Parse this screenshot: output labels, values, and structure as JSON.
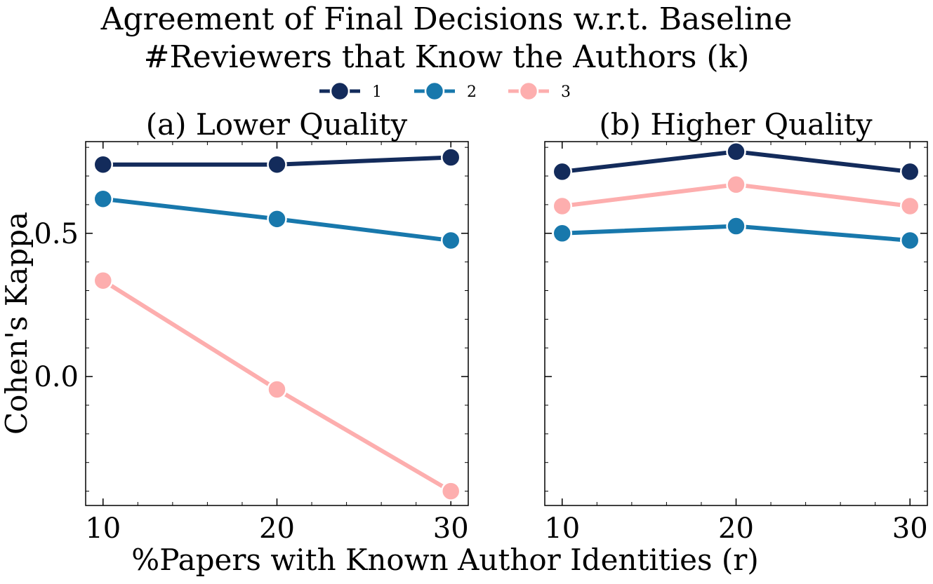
{
  "figure": {
    "title_line1": "Agreement of Final Decisions w.r.t. Baseline",
    "title_line2": "#Reviewers that Know the Authors (k)"
  },
  "legend": {
    "entries": [
      {
        "label": "1",
        "color": "#132b5b"
      },
      {
        "label": "2",
        "color": "#1878ac"
      },
      {
        "label": "3",
        "color": "#fdaeae"
      }
    ]
  },
  "chart_data": [
    {
      "type": "line",
      "title": "(a) Lower Quality",
      "xlabel": "%Papers with Known Author Identities (r)",
      "ylabel": "Cohen's Kappa",
      "x": [
        10,
        20,
        30
      ],
      "xticks": [
        "10",
        "20",
        "30"
      ],
      "yticks": [
        "0.5",
        "0.0"
      ],
      "ytick_values": [
        0.5,
        0.0
      ],
      "xlim": [
        9,
        31
      ],
      "ylim": [
        -0.45,
        0.82
      ],
      "series": [
        {
          "name": "1",
          "color": "#132b5b",
          "values": [
            0.74,
            0.74,
            0.765
          ]
        },
        {
          "name": "2",
          "color": "#1878ac",
          "values": [
            0.62,
            0.55,
            0.475
          ]
        },
        {
          "name": "3",
          "color": "#fdaeae",
          "values": [
            0.335,
            -0.045,
            -0.4
          ]
        }
      ]
    },
    {
      "type": "line",
      "title": "(b) Higher Quality",
      "xlabel": "%Papers with Known Author Identities (r)",
      "ylabel": "Cohen's Kappa",
      "x": [
        10,
        20,
        30
      ],
      "xticks": [
        "10",
        "20",
        "30"
      ],
      "yticks": [],
      "ytick_values": [
        0.5,
        0.0
      ],
      "xlim": [
        9,
        31
      ],
      "ylim": [
        -0.45,
        0.82
      ],
      "series": [
        {
          "name": "1",
          "color": "#132b5b",
          "values": [
            0.715,
            0.785,
            0.715
          ]
        },
        {
          "name": "2",
          "color": "#1878ac",
          "values": [
            0.5,
            0.525,
            0.475
          ]
        },
        {
          "name": "3",
          "color": "#fdaeae",
          "values": [
            0.595,
            0.67,
            0.595
          ]
        }
      ]
    }
  ]
}
